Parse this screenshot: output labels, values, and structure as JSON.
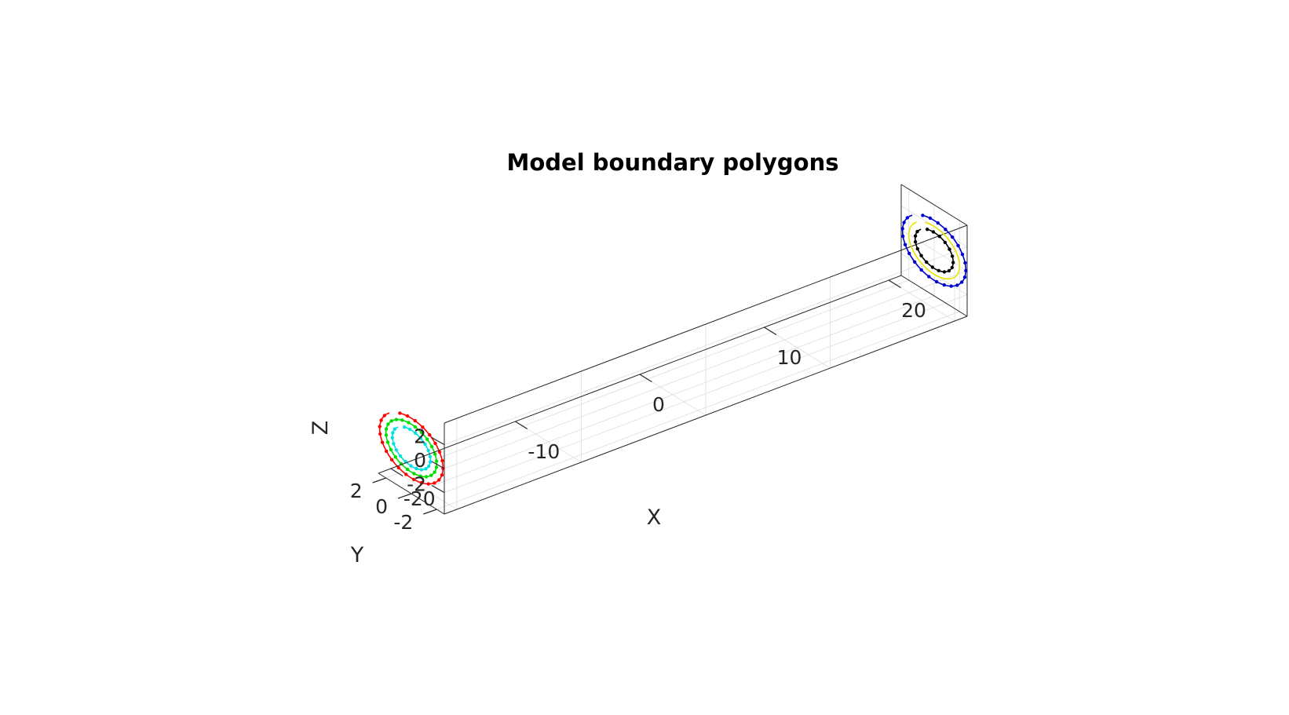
{
  "chart_data": {
    "type": "line3d",
    "title": "Model boundary polygons",
    "xlabel": "X",
    "ylabel": "Y",
    "zlabel": "Z",
    "xlim": [
      -21,
      21
    ],
    "ylim": [
      -2.6,
      2.6
    ],
    "zlim": [
      -3.8,
      3.8
    ],
    "xticks": [
      -20,
      -10,
      0,
      10,
      20
    ],
    "yticks": [
      -2,
      0,
      2
    ],
    "zticks": [
      -2,
      0,
      2
    ],
    "grid": true,
    "series": [
      {
        "color": "#ff0000",
        "center_x": -21,
        "radius": 2.5,
        "points": 24,
        "gap": 1
      },
      {
        "color": "#00dd00",
        "center_x": -21,
        "radius": 2.0,
        "points": 24,
        "gap": 0
      },
      {
        "color": "#00e0e0",
        "center_x": -21,
        "radius": 1.5,
        "points": 20,
        "gap": 1
      },
      {
        "color": "#0000cc",
        "center_x": 21,
        "radius": 2.5,
        "points": 24,
        "gap": 1
      },
      {
        "color": "#e6e600",
        "center_x": 21,
        "radius": 2.0,
        "points": 0,
        "gap": 1
      },
      {
        "color": "#000000",
        "center_x": 21,
        "radius": 1.5,
        "points": 18,
        "gap": 1
      }
    ]
  }
}
